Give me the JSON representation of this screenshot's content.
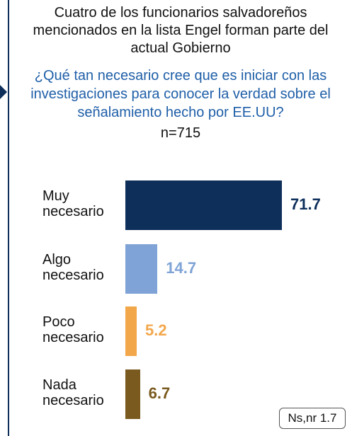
{
  "chart_data": {
    "type": "bar",
    "orientation": "horizontal",
    "title": "Cuatro de los funcionarios salvadoreños mencionados en la lista Engel forman parte del actual Gobierno",
    "subtitle": "¿Qué tan necesario cree que es iniciar con las investigaciones para conocer la verdad sobre el señalamiento hecho por EE.UU?",
    "sample": "n=715",
    "categories": [
      "Muy necesario",
      "Algo necesario",
      "Poco necesario",
      "Nada necesario"
    ],
    "values": [
      71.7,
      14.7,
      5.2,
      6.7
    ],
    "colors": [
      "#0d2f5a",
      "#7fa3d6",
      "#f3a74b",
      "#7a5a1e"
    ],
    "note": "Ns,nr 1.7"
  }
}
